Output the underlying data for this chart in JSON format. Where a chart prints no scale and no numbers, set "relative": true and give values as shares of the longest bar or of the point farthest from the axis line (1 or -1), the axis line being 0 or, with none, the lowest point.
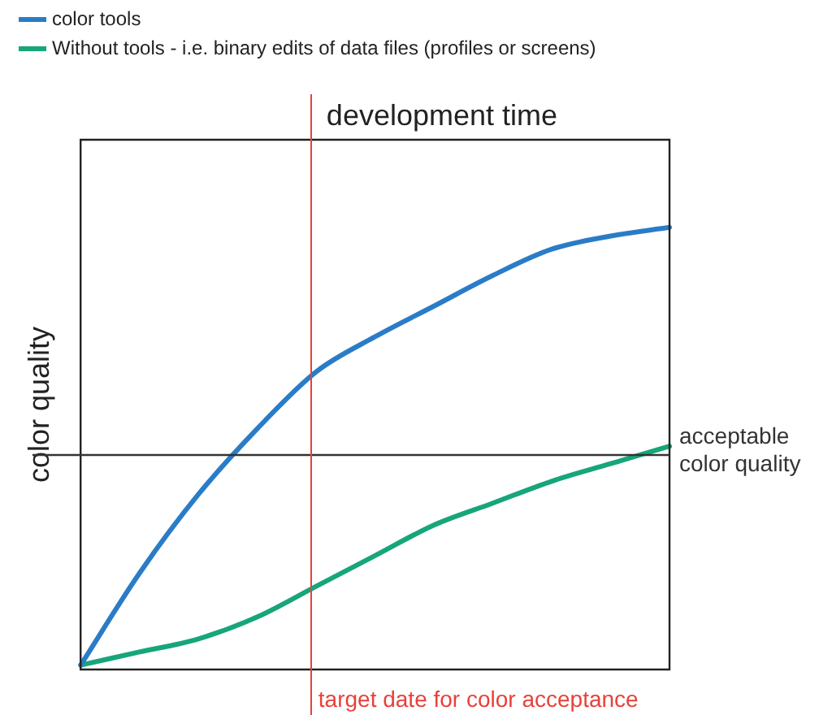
{
  "chart_data": {
    "type": "line",
    "relative": true,
    "xlabel": "development time",
    "ylabel": "color quality",
    "categories": [
      null,
      null,
      null,
      null,
      null,
      null,
      null,
      null,
      null,
      null,
      null
    ],
    "grid": false,
    "legend": "top left",
    "marker": "none",
    "line_style": "solid",
    "series": [
      {
        "name": "color tools",
        "color": "#2a7cc7",
        "values": [
          0,
          0.21,
          0.39,
          0.54,
          0.67,
          0.75,
          0.82,
          0.89,
          0.95,
          0.98,
          1
        ]
      },
      {
        "name": "Without tools - i.e. binary edits of data files (profiles or screens)",
        "color": "#17a57a",
        "values": [
          0,
          0.03,
          0.06,
          0.11,
          0.18,
          0.25,
          0.32,
          0.37,
          0.42,
          0.46,
          0.5
        ]
      }
    ],
    "ref_lines": [
      {
        "axis": "y",
        "value": 0.48,
        "label": "acceptable color quality",
        "color": "#333333"
      }
    ],
    "annotations": [
      "target date for color acceptance"
    ]
  }
}
